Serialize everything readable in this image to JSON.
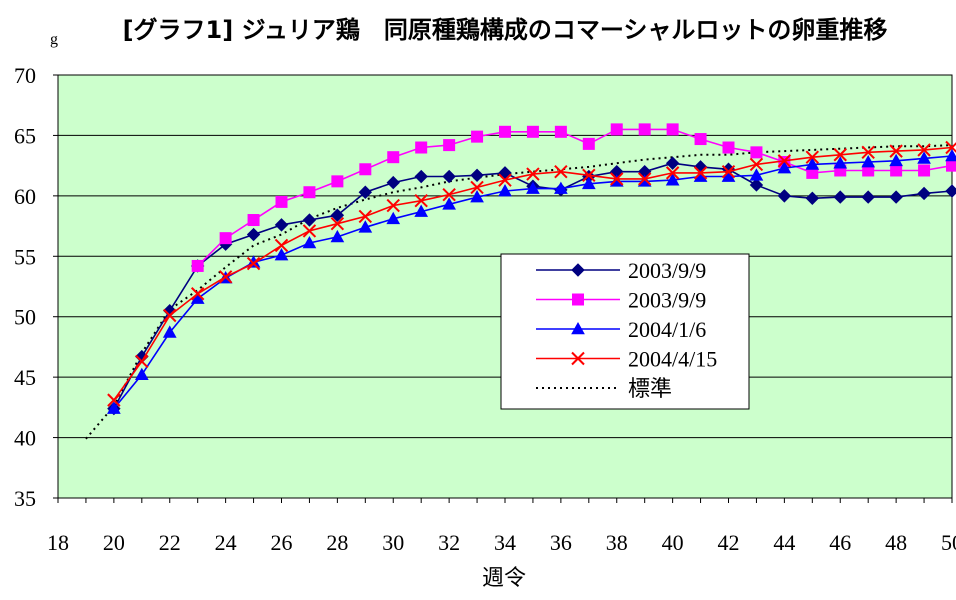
{
  "chart_data": {
    "type": "line",
    "title": "[グラフ1] ジュリア鶏　同原種鶏構成のコマーシャルロットの卵重推移",
    "xlabel": "週令",
    "ylabel": "g",
    "xlim": [
      18,
      50
    ],
    "ylim": [
      35,
      70
    ],
    "x_ticks": [
      18,
      20,
      22,
      24,
      26,
      28,
      30,
      32,
      34,
      36,
      38,
      40,
      42,
      44,
      46,
      48,
      50
    ],
    "y_ticks": [
      35,
      40,
      45,
      50,
      55,
      60,
      65,
      70
    ],
    "grid": "horizontal",
    "background": "#ccffcc",
    "legend_position": "center-right",
    "series": [
      {
        "name": "2003/9/9",
        "color": "#000080",
        "marker": "diamond",
        "line": "solid",
        "x": [
          20,
          21,
          22,
          23,
          24,
          25,
          26,
          27,
          28,
          29,
          30,
          31,
          32,
          33,
          34,
          35,
          36,
          37,
          38,
          39,
          40,
          41,
          42,
          43,
          44,
          45,
          46,
          47,
          48,
          49,
          50
        ],
        "values": [
          42.4,
          46.7,
          50.5,
          54.2,
          56.0,
          56.8,
          57.6,
          58.0,
          58.4,
          60.3,
          61.1,
          61.6,
          61.6,
          61.7,
          61.9,
          60.8,
          60.5,
          61.6,
          62.0,
          62.0,
          62.7,
          62.4,
          62.2,
          60.9,
          60.0,
          59.8,
          59.9,
          59.9,
          59.9,
          60.2,
          60.4
        ]
      },
      {
        "name": "2003/9/9",
        "color": "#ff00ff",
        "marker": "square",
        "line": "solid",
        "x": [
          23,
          24,
          25,
          26,
          27,
          28,
          29,
          30,
          31,
          32,
          33,
          34,
          35,
          36,
          37,
          38,
          39,
          40,
          41,
          42,
          43,
          44,
          45,
          46,
          47,
          48,
          49,
          50
        ],
        "values": [
          54.2,
          56.5,
          58.0,
          59.5,
          60.3,
          61.2,
          62.2,
          63.2,
          64.0,
          64.2,
          64.9,
          65.3,
          65.3,
          65.3,
          64.3,
          65.5,
          65.5,
          65.5,
          64.7,
          64.0,
          63.6,
          62.8,
          61.9,
          62.1,
          62.1,
          62.1,
          62.1,
          62.5
        ]
      },
      {
        "name": "2004/1/6",
        "color": "#0000ff",
        "marker": "triangle",
        "line": "solid",
        "x": [
          20,
          21,
          22,
          23,
          24,
          25,
          26,
          27,
          28,
          29,
          30,
          31,
          32,
          33,
          34,
          35,
          36,
          37,
          38,
          39,
          40,
          41,
          42,
          43,
          44,
          45,
          46,
          47,
          48,
          49,
          50
        ],
        "values": [
          42.4,
          45.2,
          48.7,
          51.5,
          53.2,
          54.5,
          55.1,
          56.1,
          56.6,
          57.4,
          58.1,
          58.7,
          59.3,
          59.9,
          60.4,
          60.6,
          60.6,
          61.0,
          61.2,
          61.2,
          61.3,
          61.6,
          61.6,
          61.7,
          62.3,
          62.6,
          62.7,
          62.8,
          62.9,
          63.1,
          63.3
        ]
      },
      {
        "name": "2004/4/15",
        "color": "#ff0000",
        "marker": "x",
        "line": "solid",
        "x": [
          20,
          21,
          22,
          23,
          24,
          25,
          26,
          27,
          28,
          29,
          30,
          31,
          32,
          33,
          34,
          35,
          36,
          37,
          38,
          39,
          40,
          41,
          42,
          43,
          44,
          45,
          46,
          47,
          48,
          49,
          50
        ],
        "values": [
          43.1,
          46.3,
          50.1,
          51.9,
          53.3,
          54.4,
          55.9,
          57.1,
          57.7,
          58.3,
          59.2,
          59.6,
          60.1,
          60.7,
          61.3,
          61.8,
          62.0,
          61.7,
          61.4,
          61.4,
          61.9,
          61.9,
          62.0,
          62.6,
          62.9,
          63.2,
          63.4,
          63.6,
          63.7,
          63.8,
          64.0
        ]
      },
      {
        "name": "標準",
        "color": "#000000",
        "marker": "none",
        "line": "dotted",
        "x": [
          19,
          20,
          21,
          22,
          23,
          24,
          25,
          26,
          27,
          28,
          29,
          30,
          31,
          32,
          33,
          34,
          35,
          36,
          37,
          38,
          39,
          40,
          41,
          42,
          43,
          44,
          45,
          46,
          47,
          48,
          49,
          50
        ],
        "values": [
          39.9,
          42.6,
          47.0,
          50.6,
          52.2,
          54.1,
          55.9,
          56.8,
          58.1,
          59.0,
          59.7,
          60.3,
          60.7,
          61.2,
          61.5,
          61.8,
          62.0,
          62.2,
          62.4,
          62.7,
          63.0,
          63.2,
          63.4,
          63.4,
          63.6,
          63.7,
          63.8,
          63.9,
          64.0,
          64.1,
          64.1,
          64.2
        ]
      }
    ]
  }
}
